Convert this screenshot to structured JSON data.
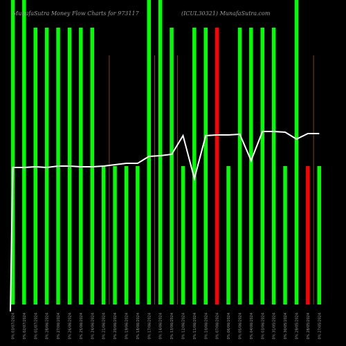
{
  "chart_data": {
    "type": "bar",
    "title_left": "MunafaSutra Money Flow Charts for 973117",
    "title_right": "(ICUL30321) MunafaSutra.com",
    "colors": {
      "background": "#000000",
      "up": "#00ff00",
      "down": "#ff0000",
      "line": "#ffffff",
      "divider": "#a0522d"
    },
    "categories": [
      "0% 03/07/2024",
      "0% 02/07/2024",
      "0% 01/07/2024",
      "0% 28/06/2024",
      "0% 27/06/2024",
      "0% 26/06/2024",
      "0% 25/06/2024",
      "0% 24/06/2024",
      "0% 21/06/2024",
      "0% 20/06/2024",
      "0% 19/06/2024",
      "0% 18/06/2024",
      "0% 17/06/2024",
      "0% 14/06/2024",
      "0% 13/06/2024",
      "0% 12/06/2024",
      "0% 11/06/2024",
      "0% 10/06/2024",
      "0% 07/06/2024",
      "0% 06/06/2024",
      "0% 05/06/2024",
      "0% 04/06/2024",
      "0% 03/06/2024",
      "0% 31/05/2024",
      "0% 30/05/2024",
      "0% 29/05/2024",
      "0% 28/05/2024",
      "0% 27/05/2024"
    ],
    "series": [
      {
        "kind": "volume",
        "values": [
          100,
          100,
          100,
          100,
          100,
          100,
          100,
          100,
          50,
          50,
          50,
          50,
          100,
          100,
          100,
          50,
          100,
          100,
          100,
          50,
          100,
          100,
          100,
          100,
          50,
          100,
          50,
          50
        ],
        "direction": [
          "up",
          "up",
          "up",
          "up",
          "up",
          "up",
          "up",
          "up",
          "up",
          "up",
          "up",
          "up",
          "up",
          "up",
          "up",
          "up",
          "up",
          "up",
          "down",
          "up",
          "up",
          "up",
          "up",
          "up",
          "up",
          "up",
          "down",
          "up"
        ]
      },
      {
        "kind": "price",
        "values": [
          49.0,
          49.0,
          49.1,
          49.0,
          49.2,
          49.2,
          49.1,
          49.1,
          49.2,
          49.4,
          49.6,
          49.6,
          50.6,
          50.7,
          50.9,
          53.6,
          47.4,
          53.6,
          53.7,
          53.7,
          53.8,
          50.0,
          54.2,
          54.2,
          54.1,
          53.1,
          53.9,
          53.9
        ]
      }
    ],
    "x_divider_gap_after": [
      8,
      12,
      14,
      26
    ]
  }
}
